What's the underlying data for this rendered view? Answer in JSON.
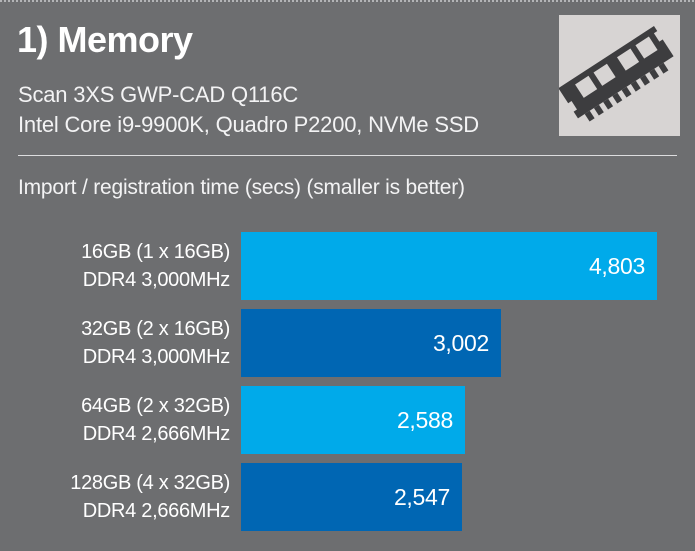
{
  "page": {
    "background_color": "#6d6e70"
  },
  "header": {
    "title": "1) Memory",
    "subtitle_line1": "Scan 3XS GWP-CAD Q116C",
    "subtitle_line2": "Intel Core i9-9900K, Quadro P2200, NVMe SSD",
    "icon": "ram-memory-icon",
    "icon_box_color": "#d7d4d3",
    "icon_glyph_color": "#3d3d3f"
  },
  "chart_data": {
    "type": "bar",
    "orientation": "horizontal",
    "title": "Import / registration time (secs) (smaller is better)",
    "categories": [
      [
        "16GB (1 x 16GB)",
        "DDR4 3,000MHz"
      ],
      [
        "32GB (2 x 16GB)",
        "DDR4 3,000MHz"
      ],
      [
        "64GB (2 x 32GB)",
        "DDR4 2,666MHz"
      ],
      [
        "128GB (4 x 32GB)",
        "DDR4 2,666MHz"
      ]
    ],
    "values": [
      4803,
      3002,
      2588,
      2547
    ],
    "value_labels": [
      "4,803",
      "3,002",
      "2,588",
      "2,547"
    ],
    "bar_colors": [
      "#00aaea",
      "#0066b3",
      "#00aaea",
      "#0066b3"
    ],
    "value_label_color": "#ffffff",
    "xlim": [
      0,
      4803
    ],
    "grid": false,
    "legend": false,
    "smaller_is_better": true
  }
}
